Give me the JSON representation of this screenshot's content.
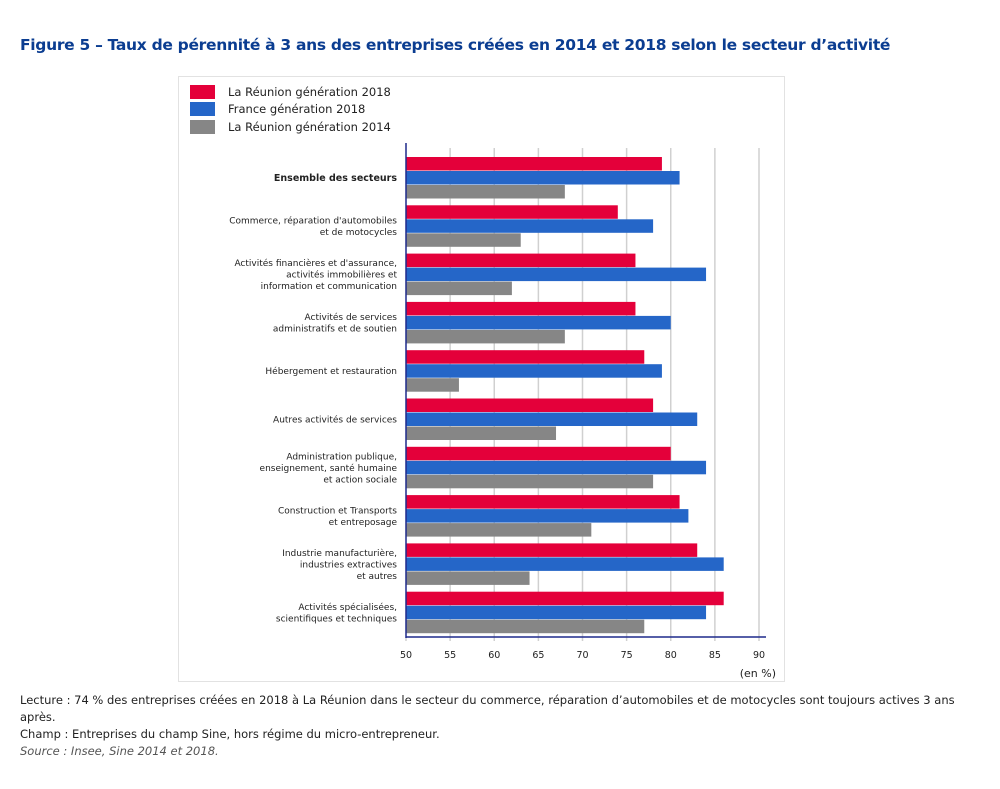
{
  "figure": {
    "title": "Figure 5 – Taux de pérennité à 3 ans des entreprises créées en 2014 et 2018 selon le secteur d’activité"
  },
  "colors": {
    "reunion_2018": "#e4003a",
    "france_2018": "#2566c8",
    "reunion_2014": "#868686",
    "axis": "#1f2a8c",
    "grid": "#d0d0d0",
    "title": "#0b3d91"
  },
  "notes": {
    "lecture": "Lecture : 74 % des entreprises créées en 2018 à La Réunion dans le secteur du commerce, réparation d’automobiles et de motocycles sont toujours actives 3 ans après.",
    "champ": "Champ : Entreprises du champ Sine, hors régime du micro-entrepreneur.",
    "source": "Source : Insee, Sine 2014 et 2018."
  },
  "chart_data": {
    "type": "bar",
    "orientation": "horizontal",
    "title": "Figure 5 – Taux de pérennité à 3 ans des entreprises créées en 2014 et 2018 selon le secteur d’activité",
    "xlabel": "(en %)",
    "ylabel": "",
    "xlim": [
      50,
      90
    ],
    "xticks": [
      50,
      55,
      60,
      65,
      70,
      75,
      80,
      85,
      90
    ],
    "grid": true,
    "legend_position": "top-left",
    "categories": [
      [
        "Ensemble des secteurs"
      ],
      [
        "Commerce, réparation d'automobiles",
        "et de motocycles"
      ],
      [
        "Activités financières et d'assurance,",
        "activités immobilières et",
        "information et communication"
      ],
      [
        "Activités de services",
        "administratifs et de soutien"
      ],
      [
        "Hébergement et restauration"
      ],
      [
        "Autres activités de services"
      ],
      [
        "Administration publique,",
        "enseignement, santé humaine",
        "et action sociale"
      ],
      [
        "Construction et Transports",
        "et entreposage"
      ],
      [
        "Industrie manufacturière,",
        "industries extractives",
        "et autres"
      ],
      [
        "Activités spécialisées,",
        "scientifiques et techniques"
      ]
    ],
    "bold_categories": [
      0
    ],
    "series": [
      {
        "name": "La Réunion génération 2018",
        "color": "#e4003a",
        "values": [
          79,
          74,
          76,
          76,
          77,
          78,
          80,
          81,
          83,
          86
        ]
      },
      {
        "name": "France génération 2018",
        "color": "#2566c8",
        "values": [
          81,
          78,
          84,
          80,
          79,
          83,
          84,
          82,
          86,
          84
        ]
      },
      {
        "name": "La Réunion génération 2014",
        "color": "#868686",
        "values": [
          68,
          63,
          62,
          68,
          56,
          67,
          78,
          71,
          64,
          77
        ]
      }
    ]
  }
}
